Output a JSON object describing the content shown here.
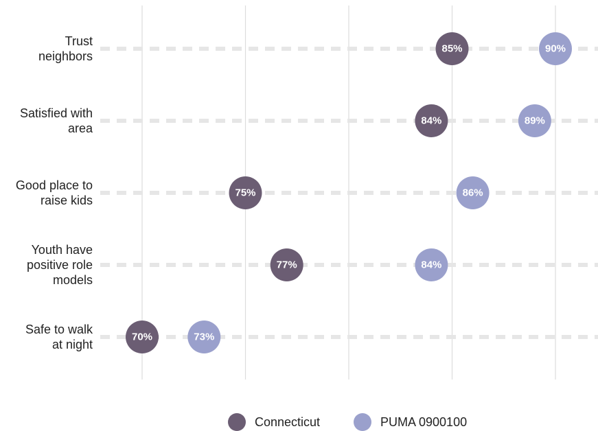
{
  "chart_data": {
    "type": "scatter",
    "subtype": "dot-plot",
    "categories": [
      [
        "Trust",
        "neighbors"
      ],
      [
        "Satisfied with",
        "area"
      ],
      [
        "Good place to",
        "raise kids"
      ],
      [
        "Youth have",
        "positive role",
        "models"
      ],
      [
        "Safe to walk",
        "at night"
      ]
    ],
    "series": [
      {
        "name": "Connecticut",
        "color": "#6b5d73",
        "values": [
          85,
          84,
          75,
          77,
          70
        ],
        "labels": [
          "85%",
          "84%",
          "75%",
          "77%",
          "70%"
        ]
      },
      {
        "name": "PUMA 0900100",
        "color": "#9aa0cc",
        "values": [
          90,
          89,
          86,
          84,
          73
        ],
        "labels": [
          "90%",
          "89%",
          "86%",
          "84%",
          "73%"
        ]
      }
    ],
    "xlim": [
      68,
      92
    ],
    "x_gridlines": [
      70,
      75,
      80,
      85,
      90
    ],
    "grid": true,
    "legend": "bottom",
    "title": "",
    "xlabel": "",
    "ylabel": ""
  }
}
